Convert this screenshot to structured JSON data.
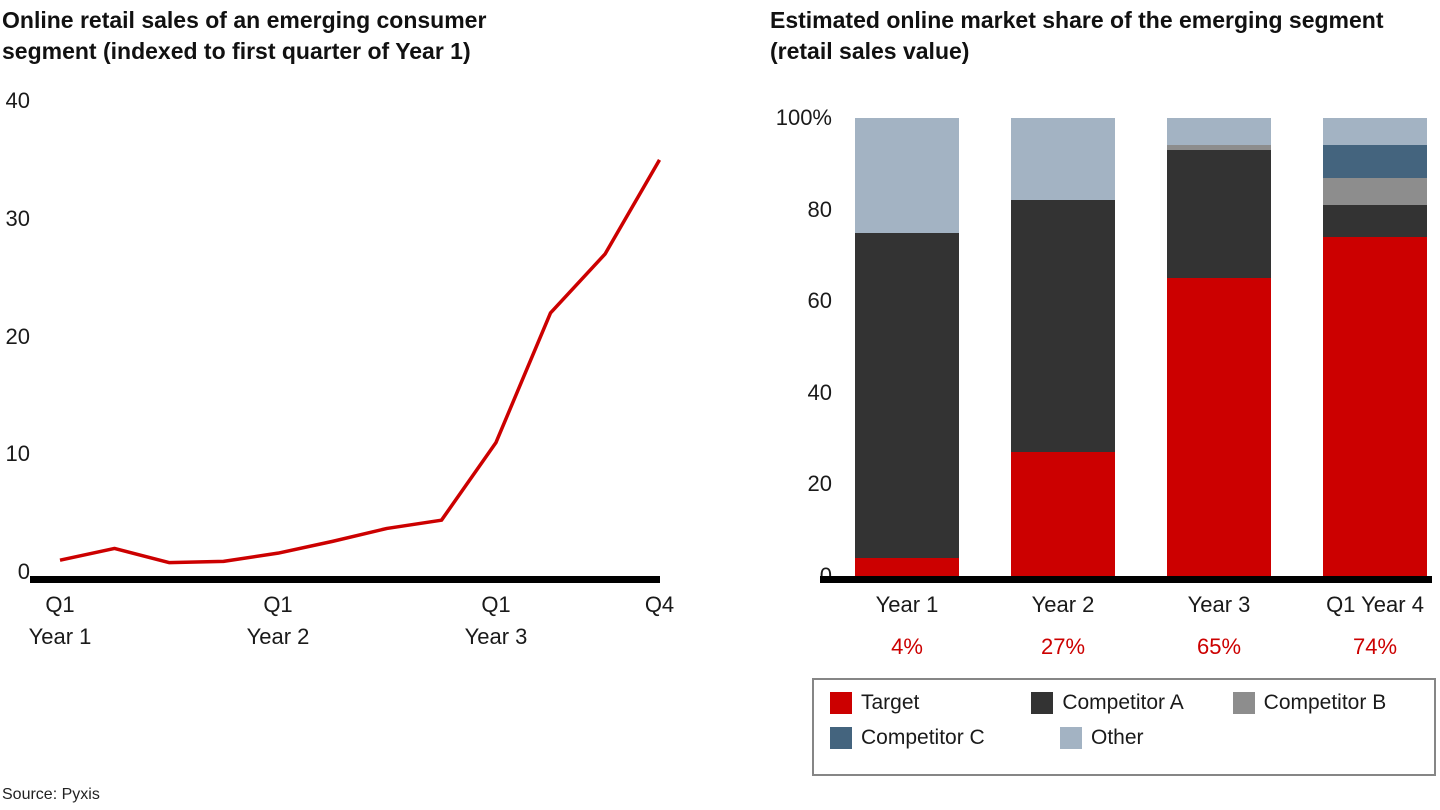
{
  "page": {
    "source": "Source: Pyxis"
  },
  "colors": {
    "accent_red": "#cc0000",
    "axis_black": "#000000",
    "legend_border": "#868686"
  },
  "chart_data": [
    {
      "type": "line",
      "title": "Online retail sales of an emerging consumer segment (indexed to first quarter of Year 1)",
      "x": [
        "Q1 Year 1",
        "Q2 Year 1",
        "Q3 Year 1",
        "Q4 Year 1",
        "Q1 Year 2",
        "Q2 Year 2",
        "Q3 Year 2",
        "Q4 Year 2",
        "Q1 Year 3",
        "Q2 Year 3",
        "Q3 Year 3",
        "Q4 Year 3"
      ],
      "values": [
        1,
        2,
        0.8,
        0.9,
        1.6,
        2.6,
        3.7,
        4.4,
        11,
        22,
        27,
        35
      ],
      "ylim": [
        0,
        40
      ],
      "grid": false,
      "line_color": "#cc0000",
      "yticks": [
        {
          "value": 0,
          "label": "0"
        },
        {
          "value": 10,
          "label": "10"
        },
        {
          "value": 20,
          "label": "20"
        },
        {
          "value": 30,
          "label": "30"
        },
        {
          "value": 40,
          "label": "40"
        }
      ],
      "xticks": [
        {
          "index": 0,
          "label": "Q1",
          "year": "Year 1"
        },
        {
          "index": 4,
          "label": "Q1",
          "year": "Year 2"
        },
        {
          "index": 8,
          "label": "Q1",
          "year": "Year 3"
        },
        {
          "index": 11,
          "label": "Q4",
          "year": ""
        }
      ]
    },
    {
      "type": "bar",
      "stacked": true,
      "normalized_percent": true,
      "title": "Estimated online market share of the emerging segment (retail sales value)",
      "categories": [
        "Year 1",
        "Year 2",
        "Year 3",
        "Q1 Year 4"
      ],
      "series": [
        {
          "name": "Target",
          "color": "#cc0000",
          "values": [
            4,
            27,
            65,
            74
          ]
        },
        {
          "name": "Competitor A",
          "color": "#333333",
          "values": [
            71,
            55,
            28,
            7
          ]
        },
        {
          "name": "Competitor B",
          "color": "#8d8d8d",
          "values": [
            0,
            0,
            1,
            6
          ]
        },
        {
          "name": "Competitor C",
          "color": "#44647e",
          "values": [
            0,
            0,
            0,
            7
          ]
        },
        {
          "name": "Other",
          "color": "#a3b3c3",
          "values": [
            25,
            18,
            6,
            6
          ]
        }
      ],
      "target_share_labels": [
        "4%",
        "27%",
        "65%",
        "74%"
      ],
      "ylim": [
        0,
        100
      ],
      "yticks": [
        {
          "value": 0,
          "label": "0"
        },
        {
          "value": 20,
          "label": "20"
        },
        {
          "value": 40,
          "label": "40"
        },
        {
          "value": 60,
          "label": "60"
        },
        {
          "value": 80,
          "label": "80"
        },
        {
          "value": 100,
          "label": "100%"
        }
      ],
      "legend": {
        "position": "bottom",
        "rows": [
          [
            "Target",
            "Competitor A",
            "Competitor B"
          ],
          [
            "Competitor C",
            "Other"
          ]
        ]
      }
    }
  ]
}
